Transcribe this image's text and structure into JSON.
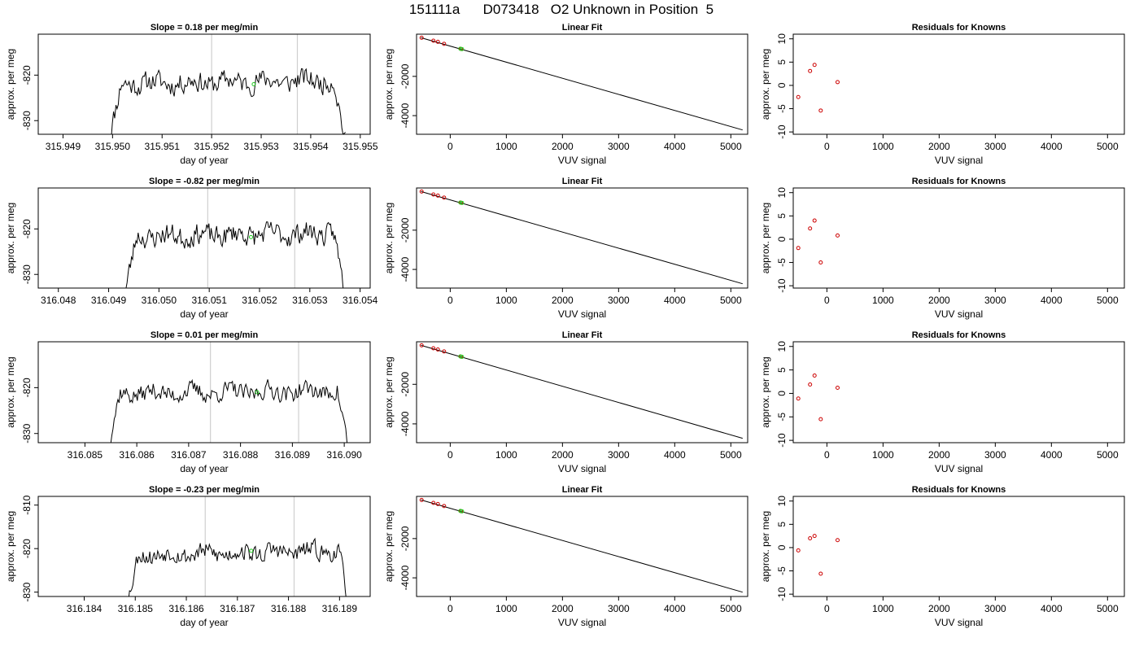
{
  "title": "151111a      D073418   O2 Unknown in Position  5",
  "colors": {
    "known": "#cc0000",
    "unknown": "#22cc22",
    "series": "#000000",
    "marker_lines": "#cfcfcf"
  },
  "chart_data": [
    {
      "type": "line",
      "title": "Slope =  0.18  per meg/min",
      "xlabel": "day of year",
      "ylabel": "approx. per meg",
      "xlim": [
        315.9485,
        315.9552
      ],
      "ylim": [
        -833,
        -811
      ],
      "xticks": [
        "315.949",
        "315.950",
        "315.951",
        "315.952",
        "315.953",
        "315.954",
        "315.955"
      ],
      "yticks": [
        "-820",
        "-830"
      ],
      "x_start": 315.9499,
      "x_end": 315.9547,
      "y_base": -821.5,
      "noise": 2.0,
      "ramp": 0.18,
      "seed": 11,
      "vlines": [
        315.952,
        315.95373
      ],
      "unknown_point": {
        "x": 315.95285,
        "y": -822
      }
    },
    {
      "type": "scatter",
      "title": "Linear Fit",
      "xlabel": "VUV signal",
      "ylabel": "approx. per meg",
      "xlim": [
        -600,
        5300
      ],
      "ylim": [
        -4950,
        150
      ],
      "xticks": [
        "0",
        "1000",
        "2000",
        "3000",
        "4000",
        "5000"
      ],
      "yticks": [
        "-2000",
        "-4000"
      ],
      "fit_line": {
        "x": [
          -520,
          5210
        ],
        "y": [
          -30,
          -4730
        ]
      },
      "known_points": {
        "x": [
          -510,
          -300,
          -220,
          -110,
          190
        ],
        "y": [
          -30,
          -180,
          -240,
          -340,
          -600
        ]
      },
      "unknown_points": {
        "x": [
          180,
          210
        ],
        "y": [
          -590,
          -610
        ]
      }
    },
    {
      "type": "scatter",
      "title": "Residuals for Knowns",
      "xlabel": "VUV signal",
      "ylabel": "approx. per meg",
      "xlim": [
        -600,
        5300
      ],
      "ylim": [
        -10.5,
        11
      ],
      "xticks": [
        "0",
        "1000",
        "2000",
        "3000",
        "4000",
        "5000"
      ],
      "yticks": [
        "-10",
        "-5",
        "0",
        "5",
        "10"
      ],
      "known_points": {
        "x": [
          -510,
          -300,
          -220,
          -110,
          190
        ],
        "y": [
          -2.5,
          3.1,
          4.4,
          -5.4,
          0.7
        ]
      }
    },
    {
      "type": "line",
      "title": "Slope =  -0.82  per meg/min",
      "xlabel": "day of year",
      "ylabel": "approx. per meg",
      "xlim": [
        316.0476,
        316.0542
      ],
      "ylim": [
        -833,
        -811
      ],
      "xticks": [
        "316.048",
        "316.049",
        "316.050",
        "316.051",
        "316.052",
        "316.053",
        "316.054"
      ],
      "yticks": [
        "-820",
        "-830"
      ],
      "x_start": 316.0493,
      "x_end": 316.0537,
      "y_base": -821.3,
      "noise": 2.0,
      "ramp": 0.2,
      "seed": 23,
      "vlines": [
        316.05097,
        316.0527
      ],
      "unknown_point": {
        "x": 316.05183,
        "y": -821.8
      }
    },
    {
      "type": "scatter",
      "title": "Linear Fit",
      "xlabel": "VUV signal",
      "ylabel": "approx. per meg",
      "xlim": [
        -600,
        5300
      ],
      "ylim": [
        -4950,
        150
      ],
      "xticks": [
        "0",
        "1000",
        "2000",
        "3000",
        "4000",
        "5000"
      ],
      "yticks": [
        "-2000",
        "-4000"
      ],
      "fit_line": {
        "x": [
          -520,
          5210
        ],
        "y": [
          -30,
          -4730
        ]
      },
      "known_points": {
        "x": [
          -510,
          -300,
          -220,
          -110,
          190
        ],
        "y": [
          -30,
          -180,
          -240,
          -340,
          -600
        ]
      },
      "unknown_points": {
        "x": [
          180,
          210
        ],
        "y": [
          -590,
          -610
        ]
      }
    },
    {
      "type": "scatter",
      "title": "Residuals for Knowns",
      "xlabel": "VUV signal",
      "ylabel": "approx. per meg",
      "xlim": [
        -600,
        5300
      ],
      "ylim": [
        -10.5,
        11
      ],
      "xticks": [
        "0",
        "1000",
        "2000",
        "3000",
        "4000",
        "5000"
      ],
      "yticks": [
        "-10",
        "-5",
        "0",
        "5",
        "10"
      ],
      "known_points": {
        "x": [
          -510,
          -300,
          -220,
          -110,
          190
        ],
        "y": [
          -1.9,
          2.3,
          4.0,
          -5.0,
          0.8
        ]
      }
    },
    {
      "type": "line",
      "title": "Slope =  0.01  per meg/min",
      "xlabel": "day of year",
      "ylabel": "approx. per meg",
      "xlim": [
        316.0841,
        316.0905
      ],
      "ylim": [
        -832,
        -810
      ],
      "xticks": [
        "316.085",
        "316.086",
        "316.087",
        "316.088",
        "316.089",
        "316.090"
      ],
      "yticks": [
        "-820",
        "-830"
      ],
      "x_start": 316.0854,
      "x_end": 316.0901,
      "y_base": -821.0,
      "noise": 1.7,
      "ramp": 0.15,
      "seed": 37,
      "vlines": [
        316.08742,
        316.08912
      ],
      "unknown_point": {
        "x": 316.08832,
        "y": -821
      }
    },
    {
      "type": "scatter",
      "title": "Linear Fit",
      "xlabel": "VUV signal",
      "ylabel": "approx. per meg",
      "xlim": [
        -600,
        5300
      ],
      "ylim": [
        -4950,
        150
      ],
      "xticks": [
        "0",
        "1000",
        "2000",
        "3000",
        "4000",
        "5000"
      ],
      "yticks": [
        "-2000",
        "-4000"
      ],
      "fit_line": {
        "x": [
          -520,
          5210
        ],
        "y": [
          -30,
          -4730
        ]
      },
      "known_points": {
        "x": [
          -510,
          -300,
          -220,
          -110,
          190
        ],
        "y": [
          -30,
          -180,
          -240,
          -340,
          -600
        ]
      },
      "unknown_points": {
        "x": [
          180,
          210
        ],
        "y": [
          -590,
          -610
        ]
      }
    },
    {
      "type": "scatter",
      "title": "Residuals for Knowns",
      "xlabel": "VUV signal",
      "ylabel": "approx. per meg",
      "xlim": [
        -600,
        5300
      ],
      "ylim": [
        -10.5,
        11
      ],
      "xticks": [
        "0",
        "1000",
        "2000",
        "3000",
        "4000",
        "5000"
      ],
      "yticks": [
        "-10",
        "-5",
        "0",
        "5",
        "10"
      ],
      "known_points": {
        "x": [
          -510,
          -300,
          -220,
          -110,
          190
        ],
        "y": [
          -1.1,
          1.9,
          3.8,
          -5.5,
          1.2
        ]
      }
    },
    {
      "type": "line",
      "title": "Slope =  -0.23  per meg/min",
      "xlabel": "day of year",
      "ylabel": "approx. per meg",
      "xlim": [
        316.1831,
        316.1896
      ],
      "ylim": [
        -831,
        -808
      ],
      "xticks": [
        "316.184",
        "316.185",
        "316.186",
        "316.187",
        "316.188",
        "316.189"
      ],
      "yticks": [
        "-810",
        "-820",
        "-830"
      ],
      "x_start": 316.1848,
      "x_end": 316.1892,
      "y_base": -821.0,
      "noise": 1.8,
      "ramp": 0.25,
      "seed": 53,
      "vlines": [
        316.18637,
        316.18811
      ],
      "unknown_point": {
        "x": 316.18727,
        "y": -820.5
      }
    },
    {
      "type": "scatter",
      "title": "Linear Fit",
      "xlabel": "VUV signal",
      "ylabel": "approx. per meg",
      "xlim": [
        -600,
        5300
      ],
      "ylim": [
        -4950,
        150
      ],
      "xticks": [
        "0",
        "1000",
        "2000",
        "3000",
        "4000",
        "5000"
      ],
      "yticks": [
        "-2000",
        "-4000"
      ],
      "fit_line": {
        "x": [
          -520,
          5210
        ],
        "y": [
          -30,
          -4730
        ]
      },
      "known_points": {
        "x": [
          -510,
          -300,
          -220,
          -110,
          190
        ],
        "y": [
          -30,
          -180,
          -240,
          -340,
          -600
        ]
      },
      "unknown_points": {
        "x": [
          180,
          210
        ],
        "y": [
          -590,
          -610
        ]
      }
    },
    {
      "type": "scatter",
      "title": "Residuals for Knowns",
      "xlabel": "VUV signal",
      "ylabel": "approx. per meg",
      "xlim": [
        -600,
        5300
      ],
      "ylim": [
        -10.5,
        11
      ],
      "xticks": [
        "0",
        "1000",
        "2000",
        "3000",
        "4000",
        "5000"
      ],
      "yticks": [
        "-10",
        "-5",
        "0",
        "5",
        "10"
      ],
      "known_points": {
        "x": [
          -510,
          -300,
          -220,
          -110,
          190
        ],
        "y": [
          -0.6,
          2.0,
          2.5,
          -5.6,
          1.6
        ]
      }
    }
  ]
}
